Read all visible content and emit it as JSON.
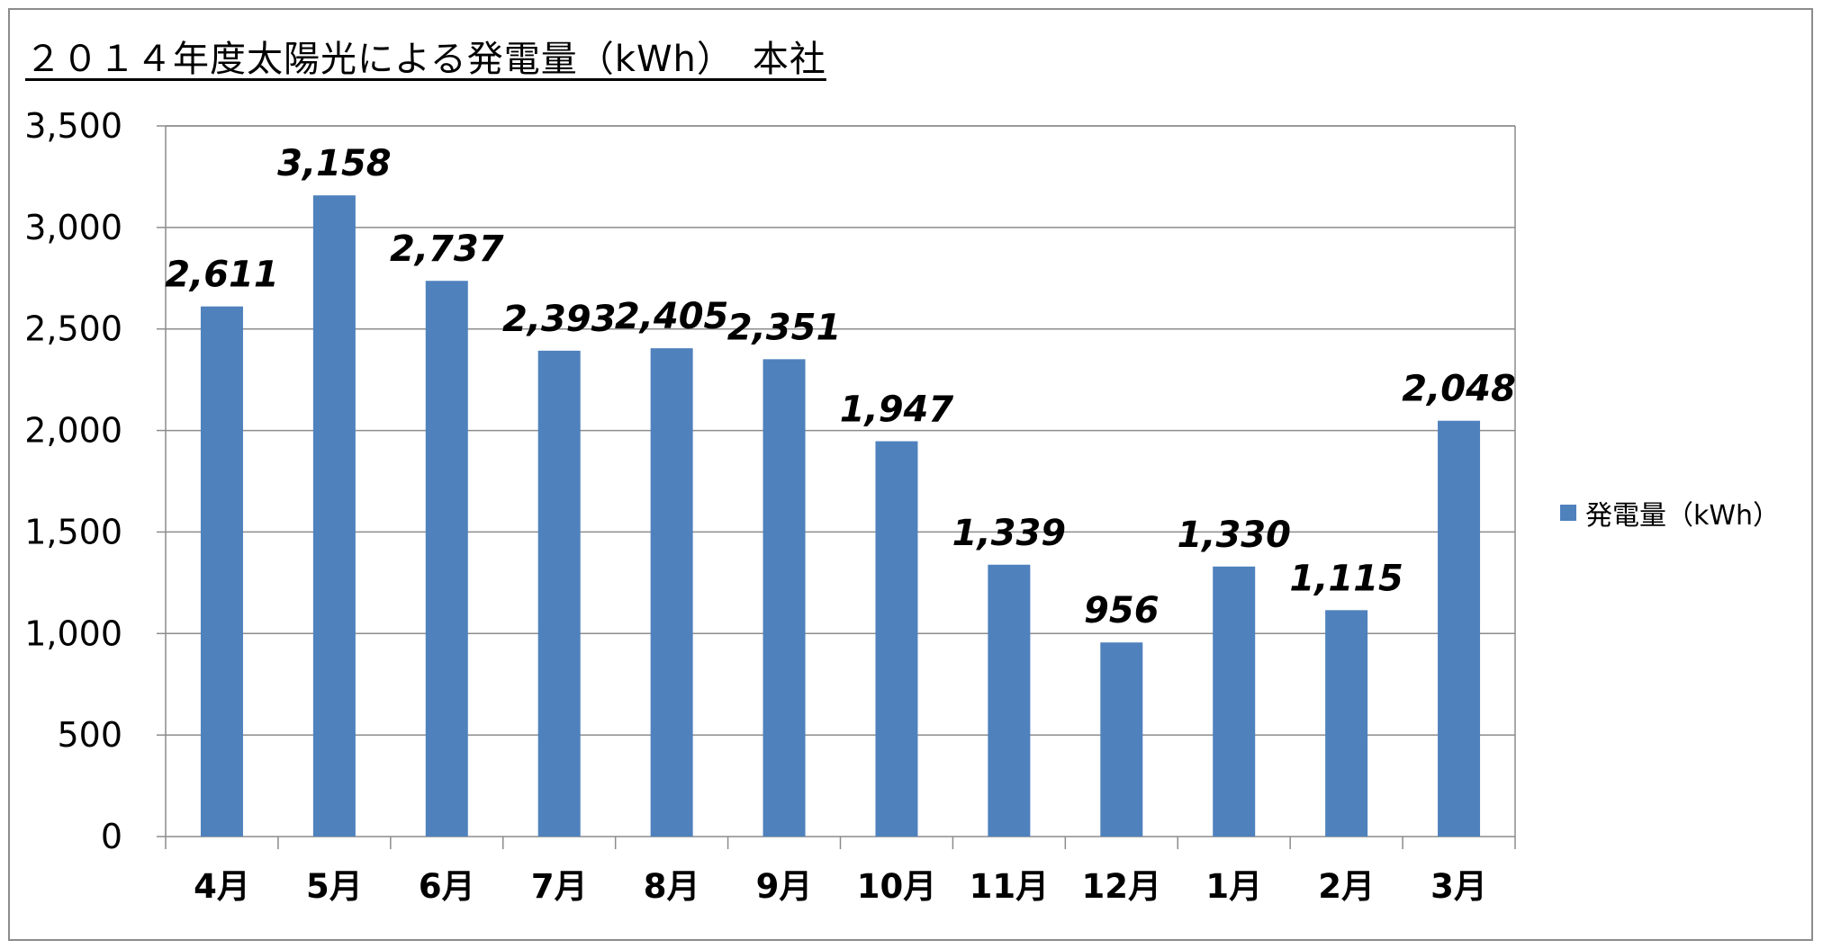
{
  "chart_data": {
    "type": "bar",
    "title": "２０１４年度太陽光による発電量（kWh）　本社",
    "categories": [
      "4月",
      "5月",
      "6月",
      "7月",
      "8月",
      "9月",
      "10月",
      "11月",
      "12月",
      "1月",
      "2月",
      "3月"
    ],
    "series": [
      {
        "name": "発電量（kWh）",
        "values": [
          2611,
          3158,
          2737,
          2393,
          2405,
          2351,
          1947,
          1339,
          956,
          1330,
          1115,
          2048
        ],
        "labels": [
          "2,611",
          "3,158",
          "2,737",
          "2,393",
          "2,405",
          "2,351",
          "1,947",
          "1,339",
          "956",
          "1,330",
          "1,115",
          "2,048"
        ],
        "color": "#4f81bd"
      }
    ],
    "ylim": [
      0,
      3500
    ],
    "yticks": [
      0,
      500,
      1000,
      1500,
      2000,
      2500,
      3000,
      3500
    ],
    "ytick_labels": [
      "0",
      "500",
      "1,000",
      "1,500",
      "2,000",
      "2,500",
      "3,000",
      "3,500"
    ],
    "grid": true,
    "legend_position": "right",
    "xlabel": "",
    "ylabel": ""
  }
}
